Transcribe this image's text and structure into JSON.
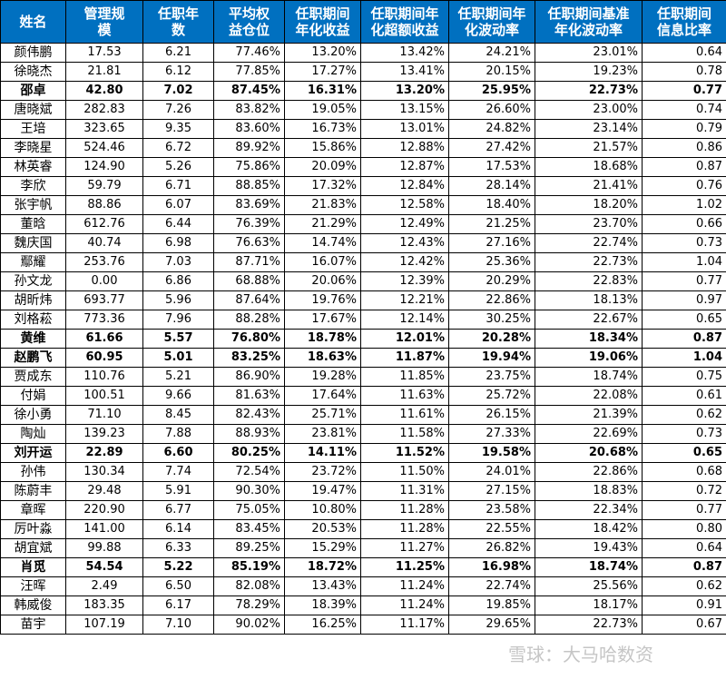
{
  "table": {
    "headers": [
      "姓名",
      "管理规\n模",
      "任职年\n数",
      "平均权\n益仓位",
      "任职期间\n年化收益",
      "任职期间年\n化超额收益",
      "任职期间年\n化波动率",
      "任职期间基准\n年化波动率",
      "任职期间\n信息比率"
    ],
    "rows": [
      {
        "bold": false,
        "cells": [
          "颜伟鹏",
          "17.53",
          "6.21",
          "77.46%",
          "13.20%",
          "13.42%",
          "24.21%",
          "23.01%",
          "0.64"
        ]
      },
      {
        "bold": false,
        "cells": [
          "徐晓杰",
          "21.81",
          "6.12",
          "77.85%",
          "17.27%",
          "13.41%",
          "20.15%",
          "19.23%",
          "0.78"
        ]
      },
      {
        "bold": true,
        "cells": [
          "邵卓",
          "42.80",
          "7.02",
          "87.45%",
          "16.31%",
          "13.20%",
          "25.95%",
          "22.73%",
          "0.77"
        ]
      },
      {
        "bold": false,
        "cells": [
          "唐晓斌",
          "282.83",
          "7.26",
          "83.82%",
          "19.05%",
          "13.15%",
          "26.60%",
          "23.00%",
          "0.74"
        ]
      },
      {
        "bold": false,
        "cells": [
          "王培",
          "323.65",
          "9.35",
          "83.60%",
          "16.73%",
          "13.01%",
          "24.82%",
          "23.14%",
          "0.79"
        ]
      },
      {
        "bold": false,
        "cells": [
          "李晓星",
          "524.46",
          "6.72",
          "89.92%",
          "15.86%",
          "12.88%",
          "27.42%",
          "21.57%",
          "0.86"
        ]
      },
      {
        "bold": false,
        "cells": [
          "林英睿",
          "124.90",
          "5.26",
          "75.86%",
          "20.09%",
          "12.87%",
          "17.53%",
          "18.68%",
          "0.87"
        ]
      },
      {
        "bold": false,
        "cells": [
          "李欣",
          "59.79",
          "6.71",
          "88.85%",
          "17.32%",
          "12.84%",
          "28.14%",
          "21.41%",
          "0.76"
        ]
      },
      {
        "bold": false,
        "cells": [
          "张宇帆",
          "88.86",
          "6.07",
          "83.69%",
          "21.83%",
          "12.58%",
          "18.40%",
          "18.20%",
          "1.02"
        ]
      },
      {
        "bold": false,
        "cells": [
          "董晗",
          "612.76",
          "6.44",
          "76.39%",
          "21.29%",
          "12.49%",
          "21.25%",
          "23.70%",
          "0.66"
        ]
      },
      {
        "bold": false,
        "cells": [
          "魏庆国",
          "40.74",
          "6.98",
          "76.63%",
          "14.74%",
          "12.43%",
          "27.16%",
          "22.74%",
          "0.73"
        ]
      },
      {
        "bold": false,
        "cells": [
          "鄢耀",
          "253.76",
          "7.03",
          "87.71%",
          "16.07%",
          "12.42%",
          "25.36%",
          "22.73%",
          "1.04"
        ]
      },
      {
        "bold": false,
        "cells": [
          "孙文龙",
          "0.00",
          "6.86",
          "68.88%",
          "20.06%",
          "12.39%",
          "20.29%",
          "22.83%",
          "0.77"
        ]
      },
      {
        "bold": false,
        "cells": [
          "胡昕炜",
          "693.77",
          "5.96",
          "87.64%",
          "19.76%",
          "12.21%",
          "22.86%",
          "18.13%",
          "0.97"
        ]
      },
      {
        "bold": false,
        "cells": [
          "刘格菘",
          "773.36",
          "7.96",
          "88.28%",
          "17.67%",
          "12.14%",
          "30.25%",
          "22.67%",
          "0.65"
        ]
      },
      {
        "bold": true,
        "cells": [
          "黄维",
          "61.66",
          "5.57",
          "76.80%",
          "18.78%",
          "12.01%",
          "20.28%",
          "18.34%",
          "0.87"
        ]
      },
      {
        "bold": true,
        "cells": [
          "赵鹏飞",
          "60.95",
          "5.01",
          "83.25%",
          "18.63%",
          "11.87%",
          "19.94%",
          "19.06%",
          "1.04"
        ]
      },
      {
        "bold": false,
        "cells": [
          "贾成东",
          "110.76",
          "5.21",
          "86.90%",
          "19.28%",
          "11.85%",
          "23.75%",
          "18.74%",
          "0.75"
        ]
      },
      {
        "bold": false,
        "cells": [
          "付娟",
          "100.51",
          "9.66",
          "81.63%",
          "17.64%",
          "11.63%",
          "25.72%",
          "22.08%",
          "0.61"
        ]
      },
      {
        "bold": false,
        "cells": [
          "徐小勇",
          "71.10",
          "8.45",
          "82.43%",
          "25.71%",
          "11.61%",
          "26.15%",
          "21.39%",
          "0.62"
        ]
      },
      {
        "bold": false,
        "cells": [
          "陶灿",
          "139.23",
          "7.88",
          "88.93%",
          "23.81%",
          "11.58%",
          "27.33%",
          "22.69%",
          "0.73"
        ]
      },
      {
        "bold": true,
        "cells": [
          "刘开运",
          "22.89",
          "6.60",
          "80.25%",
          "14.11%",
          "11.52%",
          "19.58%",
          "20.68%",
          "0.65"
        ]
      },
      {
        "bold": false,
        "cells": [
          "孙伟",
          "130.34",
          "7.74",
          "72.54%",
          "23.72%",
          "11.50%",
          "24.01%",
          "22.86%",
          "0.68"
        ]
      },
      {
        "bold": false,
        "cells": [
          "陈蔚丰",
          "29.48",
          "5.91",
          "90.30%",
          "19.47%",
          "11.31%",
          "27.15%",
          "18.83%",
          "0.72"
        ]
      },
      {
        "bold": false,
        "cells": [
          "章晖",
          "220.90",
          "6.77",
          "75.05%",
          "10.80%",
          "11.28%",
          "23.58%",
          "22.34%",
          "0.77"
        ]
      },
      {
        "bold": false,
        "cells": [
          "厉叶淼",
          "141.00",
          "6.14",
          "83.45%",
          "20.53%",
          "11.28%",
          "22.55%",
          "18.42%",
          "0.80"
        ]
      },
      {
        "bold": false,
        "cells": [
          "胡宜斌",
          "99.88",
          "6.33",
          "89.25%",
          "15.29%",
          "11.27%",
          "26.82%",
          "19.43%",
          "0.64"
        ]
      },
      {
        "bold": true,
        "cells": [
          "肖觅",
          "54.54",
          "5.22",
          "85.19%",
          "18.72%",
          "11.25%",
          "16.98%",
          "18.74%",
          "0.87"
        ]
      },
      {
        "bold": false,
        "cells": [
          "汪晖",
          "2.49",
          "6.50",
          "82.08%",
          "13.43%",
          "11.24%",
          "22.74%",
          "25.56%",
          "0.62"
        ]
      },
      {
        "bold": false,
        "cells": [
          "韩威俊",
          "183.35",
          "6.17",
          "78.29%",
          "18.39%",
          "11.24%",
          "19.85%",
          "18.17%",
          "0.91"
        ]
      },
      {
        "bold": false,
        "cells": [
          "苗宇",
          "107.19",
          "7.10",
          "90.02%",
          "16.25%",
          "11.17%",
          "29.65%",
          "22.73%",
          "0.67"
        ]
      }
    ]
  },
  "watermark": "雪球：大马哈数资",
  "colors": {
    "header_bg": "#0070c0",
    "header_text": "#ffffff",
    "grid": "#000000"
  }
}
